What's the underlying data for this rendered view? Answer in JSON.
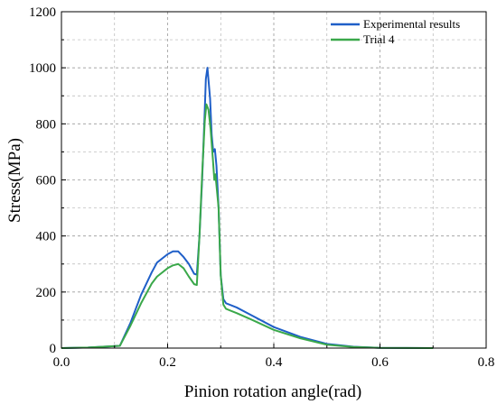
{
  "chart_data": {
    "type": "line",
    "title": "",
    "xlabel": "Pinion rotation angle(rad)",
    "ylabel": "Stress(MPa)",
    "xlim": [
      0.0,
      0.8
    ],
    "ylim": [
      0,
      1200
    ],
    "xticks": [
      "0.0",
      "0.2",
      "0.4",
      "0.6",
      "0.8"
    ],
    "xtick_values": [
      0.0,
      0.2,
      0.4,
      0.6,
      0.8
    ],
    "yticks": [
      "0",
      "200",
      "400",
      "600",
      "800",
      "1000",
      "1200"
    ],
    "ytick_values": [
      0,
      200,
      400,
      600,
      800,
      1000,
      1200
    ],
    "grid": "dashed",
    "legend_position": "top-right",
    "series": [
      {
        "name": "Experimental results",
        "color": "#1f5fc8",
        "x": [
          0.0,
          0.05,
          0.11,
          0.13,
          0.15,
          0.17,
          0.18,
          0.2,
          0.21,
          0.22,
          0.23,
          0.24,
          0.25,
          0.255,
          0.26,
          0.265,
          0.27,
          0.272,
          0.275,
          0.28,
          0.283,
          0.286,
          0.289,
          0.292,
          0.296,
          0.3,
          0.305,
          0.31,
          0.33,
          0.36,
          0.4,
          0.45,
          0.5,
          0.55,
          0.6,
          0.7
        ],
        "y": [
          0,
          2,
          8,
          90,
          190,
          270,
          305,
          335,
          345,
          345,
          325,
          300,
          265,
          262,
          400,
          600,
          850,
          960,
          1000,
          890,
          760,
          700,
          710,
          650,
          500,
          260,
          175,
          160,
          145,
          115,
          75,
          40,
          15,
          5,
          1,
          0
        ]
      },
      {
        "name": "Trial 4",
        "color": "#3aa84a",
        "x": [
          0.0,
          0.05,
          0.11,
          0.13,
          0.15,
          0.17,
          0.18,
          0.2,
          0.21,
          0.22,
          0.23,
          0.24,
          0.25,
          0.255,
          0.26,
          0.265,
          0.27,
          0.273,
          0.277,
          0.281,
          0.285,
          0.288,
          0.29,
          0.296,
          0.3,
          0.305,
          0.31,
          0.33,
          0.36,
          0.4,
          0.45,
          0.5,
          0.55,
          0.6,
          0.7
        ],
        "y": [
          0,
          2,
          8,
          80,
          160,
          230,
          255,
          285,
          295,
          300,
          285,
          255,
          228,
          225,
          400,
          620,
          810,
          870,
          850,
          780,
          680,
          600,
          620,
          500,
          260,
          155,
          140,
          125,
          100,
          65,
          35,
          12,
          4,
          1,
          0
        ]
      }
    ]
  }
}
